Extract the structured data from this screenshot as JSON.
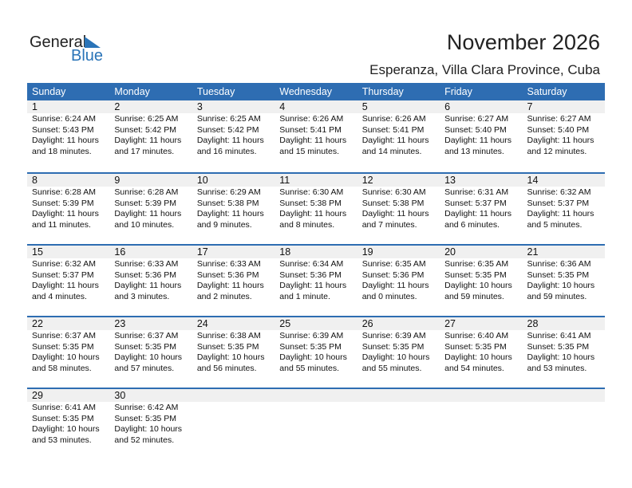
{
  "logo": {
    "general": "General",
    "blue": "Blue"
  },
  "title": "November 2026",
  "location": "Esperanza, Villa Clara Province, Cuba",
  "weekdays": [
    "Sunday",
    "Monday",
    "Tuesday",
    "Wednesday",
    "Thursday",
    "Friday",
    "Saturday"
  ],
  "colors": {
    "header": "#2e6db2",
    "band": "#f0f0f0",
    "logo_blue": "#2a74b8"
  },
  "days": [
    {
      "day": "1",
      "sunrise": "Sunrise: 6:24 AM",
      "sunset": "Sunset: 5:43 PM",
      "daylight1": "Daylight: 11 hours",
      "daylight2": "and 18 minutes."
    },
    {
      "day": "2",
      "sunrise": "Sunrise: 6:25 AM",
      "sunset": "Sunset: 5:42 PM",
      "daylight1": "Daylight: 11 hours",
      "daylight2": "and 17 minutes."
    },
    {
      "day": "3",
      "sunrise": "Sunrise: 6:25 AM",
      "sunset": "Sunset: 5:42 PM",
      "daylight1": "Daylight: 11 hours",
      "daylight2": "and 16 minutes."
    },
    {
      "day": "4",
      "sunrise": "Sunrise: 6:26 AM",
      "sunset": "Sunset: 5:41 PM",
      "daylight1": "Daylight: 11 hours",
      "daylight2": "and 15 minutes."
    },
    {
      "day": "5",
      "sunrise": "Sunrise: 6:26 AM",
      "sunset": "Sunset: 5:41 PM",
      "daylight1": "Daylight: 11 hours",
      "daylight2": "and 14 minutes."
    },
    {
      "day": "6",
      "sunrise": "Sunrise: 6:27 AM",
      "sunset": "Sunset: 5:40 PM",
      "daylight1": "Daylight: 11 hours",
      "daylight2": "and 13 minutes."
    },
    {
      "day": "7",
      "sunrise": "Sunrise: 6:27 AM",
      "sunset": "Sunset: 5:40 PM",
      "daylight1": "Daylight: 11 hours",
      "daylight2": "and 12 minutes."
    },
    {
      "day": "8",
      "sunrise": "Sunrise: 6:28 AM",
      "sunset": "Sunset: 5:39 PM",
      "daylight1": "Daylight: 11 hours",
      "daylight2": "and 11 minutes."
    },
    {
      "day": "9",
      "sunrise": "Sunrise: 6:28 AM",
      "sunset": "Sunset: 5:39 PM",
      "daylight1": "Daylight: 11 hours",
      "daylight2": "and 10 minutes."
    },
    {
      "day": "10",
      "sunrise": "Sunrise: 6:29 AM",
      "sunset": "Sunset: 5:38 PM",
      "daylight1": "Daylight: 11 hours",
      "daylight2": "and 9 minutes."
    },
    {
      "day": "11",
      "sunrise": "Sunrise: 6:30 AM",
      "sunset": "Sunset: 5:38 PM",
      "daylight1": "Daylight: 11 hours",
      "daylight2": "and 8 minutes."
    },
    {
      "day": "12",
      "sunrise": "Sunrise: 6:30 AM",
      "sunset": "Sunset: 5:38 PM",
      "daylight1": "Daylight: 11 hours",
      "daylight2": "and 7 minutes."
    },
    {
      "day": "13",
      "sunrise": "Sunrise: 6:31 AM",
      "sunset": "Sunset: 5:37 PM",
      "daylight1": "Daylight: 11 hours",
      "daylight2": "and 6 minutes."
    },
    {
      "day": "14",
      "sunrise": "Sunrise: 6:32 AM",
      "sunset": "Sunset: 5:37 PM",
      "daylight1": "Daylight: 11 hours",
      "daylight2": "and 5 minutes."
    },
    {
      "day": "15",
      "sunrise": "Sunrise: 6:32 AM",
      "sunset": "Sunset: 5:37 PM",
      "daylight1": "Daylight: 11 hours",
      "daylight2": "and 4 minutes."
    },
    {
      "day": "16",
      "sunrise": "Sunrise: 6:33 AM",
      "sunset": "Sunset: 5:36 PM",
      "daylight1": "Daylight: 11 hours",
      "daylight2": "and 3 minutes."
    },
    {
      "day": "17",
      "sunrise": "Sunrise: 6:33 AM",
      "sunset": "Sunset: 5:36 PM",
      "daylight1": "Daylight: 11 hours",
      "daylight2": "and 2 minutes."
    },
    {
      "day": "18",
      "sunrise": "Sunrise: 6:34 AM",
      "sunset": "Sunset: 5:36 PM",
      "daylight1": "Daylight: 11 hours",
      "daylight2": "and 1 minute."
    },
    {
      "day": "19",
      "sunrise": "Sunrise: 6:35 AM",
      "sunset": "Sunset: 5:36 PM",
      "daylight1": "Daylight: 11 hours",
      "daylight2": "and 0 minutes."
    },
    {
      "day": "20",
      "sunrise": "Sunrise: 6:35 AM",
      "sunset": "Sunset: 5:35 PM",
      "daylight1": "Daylight: 10 hours",
      "daylight2": "and 59 minutes."
    },
    {
      "day": "21",
      "sunrise": "Sunrise: 6:36 AM",
      "sunset": "Sunset: 5:35 PM",
      "daylight1": "Daylight: 10 hours",
      "daylight2": "and 59 minutes."
    },
    {
      "day": "22",
      "sunrise": "Sunrise: 6:37 AM",
      "sunset": "Sunset: 5:35 PM",
      "daylight1": "Daylight: 10 hours",
      "daylight2": "and 58 minutes."
    },
    {
      "day": "23",
      "sunrise": "Sunrise: 6:37 AM",
      "sunset": "Sunset: 5:35 PM",
      "daylight1": "Daylight: 10 hours",
      "daylight2": "and 57 minutes."
    },
    {
      "day": "24",
      "sunrise": "Sunrise: 6:38 AM",
      "sunset": "Sunset: 5:35 PM",
      "daylight1": "Daylight: 10 hours",
      "daylight2": "and 56 minutes."
    },
    {
      "day": "25",
      "sunrise": "Sunrise: 6:39 AM",
      "sunset": "Sunset: 5:35 PM",
      "daylight1": "Daylight: 10 hours",
      "daylight2": "and 55 minutes."
    },
    {
      "day": "26",
      "sunrise": "Sunrise: 6:39 AM",
      "sunset": "Sunset: 5:35 PM",
      "daylight1": "Daylight: 10 hours",
      "daylight2": "and 55 minutes."
    },
    {
      "day": "27",
      "sunrise": "Sunrise: 6:40 AM",
      "sunset": "Sunset: 5:35 PM",
      "daylight1": "Daylight: 10 hours",
      "daylight2": "and 54 minutes."
    },
    {
      "day": "28",
      "sunrise": "Sunrise: 6:41 AM",
      "sunset": "Sunset: 5:35 PM",
      "daylight1": "Daylight: 10 hours",
      "daylight2": "and 53 minutes."
    },
    {
      "day": "29",
      "sunrise": "Sunrise: 6:41 AM",
      "sunset": "Sunset: 5:35 PM",
      "daylight1": "Daylight: 10 hours",
      "daylight2": "and 53 minutes."
    },
    {
      "day": "30",
      "sunrise": "Sunrise: 6:42 AM",
      "sunset": "Sunset: 5:35 PM",
      "daylight1": "Daylight: 10 hours",
      "daylight2": "and 52 minutes."
    }
  ]
}
